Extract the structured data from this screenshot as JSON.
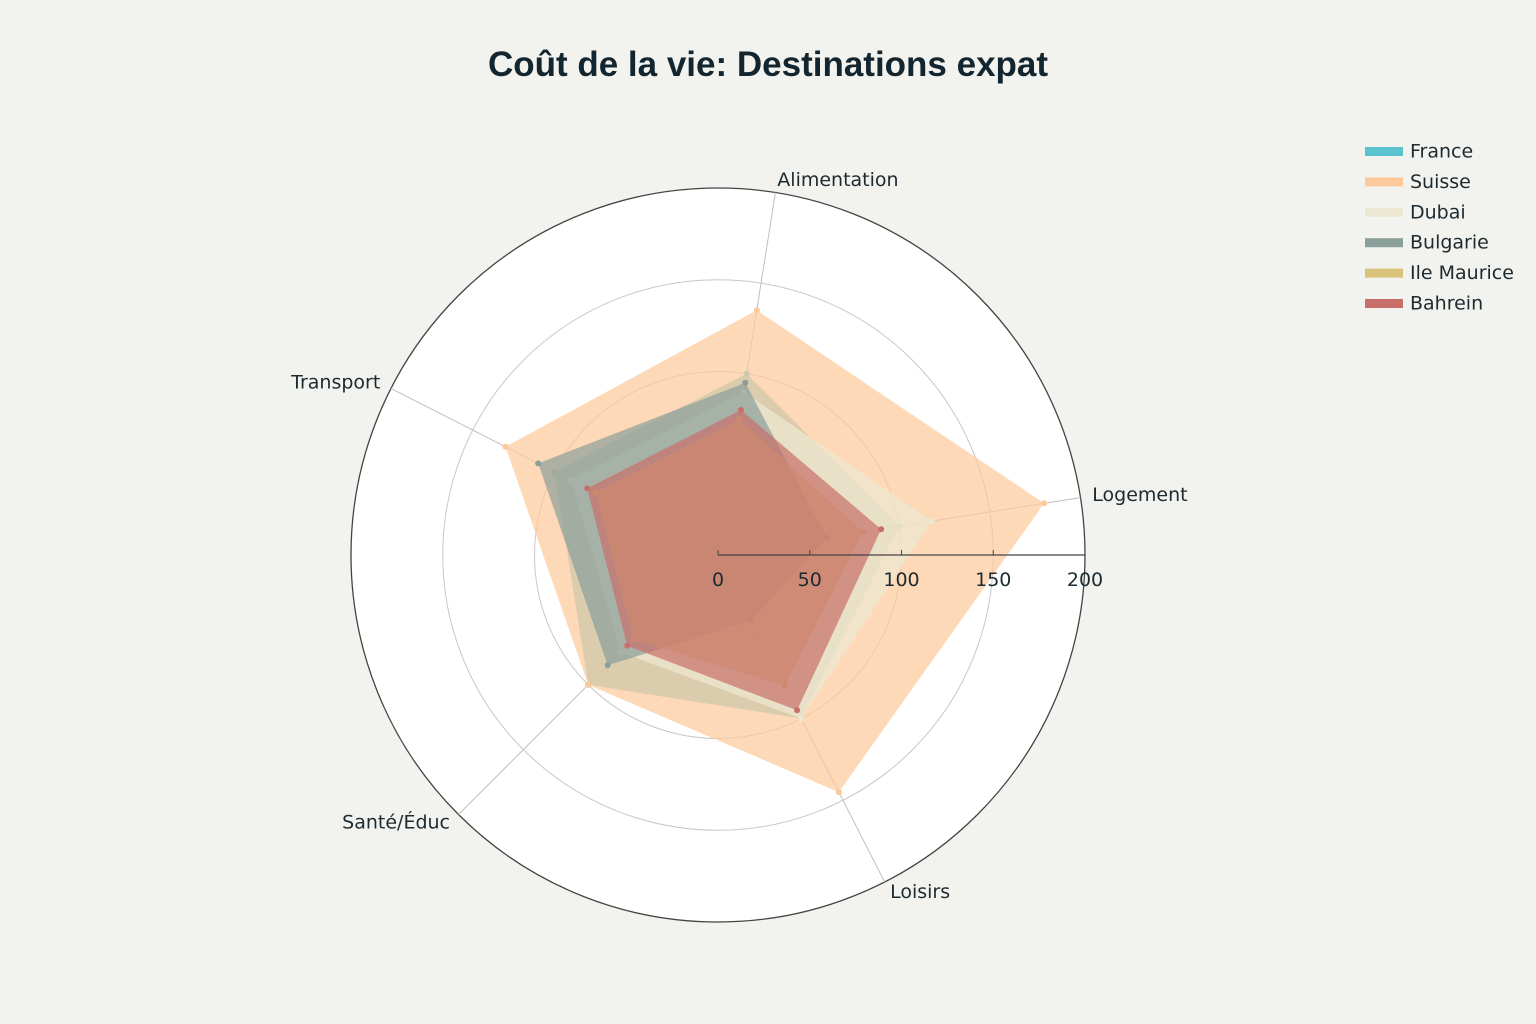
{
  "chart_data": {
    "type": "radar",
    "title": "Coût de la vie: Destinations expat",
    "axes": [
      "Logement",
      "Alimentation",
      "Transport",
      "Santé/Éduc",
      "Loisirs"
    ],
    "radial_range": [
      0,
      200
    ],
    "radial_ticks": [
      0,
      50,
      100,
      150,
      200
    ],
    "grid": true,
    "legend_position": "top-right",
    "series": [
      {
        "name": "France",
        "color": "#5bc2cf",
        "values": [
          100,
          100,
          100,
          100,
          100
        ]
      },
      {
        "name": "Suisse",
        "color": "#fdc99a",
        "values": [
          180,
          135,
          130,
          100,
          145
        ]
      },
      {
        "name": "Dubai",
        "color": "#ece8d2",
        "values": [
          118,
          90,
          90,
          75,
          100
        ]
      },
      {
        "name": "Bulgarie",
        "color": "#8a9e9a",
        "values": [
          60,
          95,
          110,
          85,
          40
        ]
      },
      {
        "name": "Ile Maurice",
        "color": "#d9c27a",
        "values": [
          80,
          75,
          75,
          65,
          80
        ]
      },
      {
        "name": "Bahrein",
        "color": "#c96f6a",
        "values": [
          90,
          80,
          80,
          70,
          95
        ]
      }
    ]
  }
}
